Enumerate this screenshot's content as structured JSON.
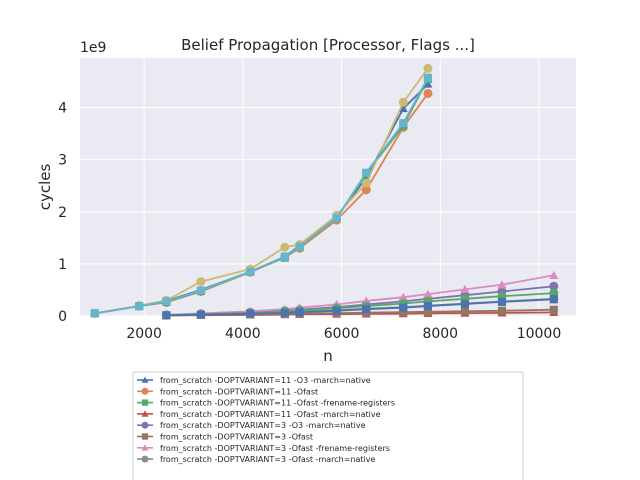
{
  "chart_data": {
    "type": "line",
    "title": "Belief Propagation [Processor, Flags ...]",
    "xlabel": "n",
    "ylabel": "cycles",
    "y_offset_label": "1e9",
    "xlim": [
      700,
      10750
    ],
    "ylim": [
      0,
      4.95
    ],
    "x_ticks": [
      2000,
      4000,
      6000,
      8000,
      10000
    ],
    "x_tick_labels": [
      "2000",
      "4000",
      "6000",
      "8000",
      "10000"
    ],
    "y_ticks": [
      0,
      1,
      2,
      3,
      4
    ],
    "y_tick_labels": [
      "0",
      "1",
      "2",
      "3",
      "4"
    ],
    "grid": true,
    "legend_position": "below",
    "series": [
      {
        "name": "from_scratch -DOPTVARIANT=11 -O3 -march=native",
        "color": "#4c72b0",
        "marker": "triangle",
        "x": [
          1000,
          1900,
          2450,
          3150,
          4150,
          4850,
          5150,
          5900,
          6500,
          7250,
          7750
        ],
        "y": [
          0.05,
          0.19,
          0.29,
          0.5,
          0.85,
          1.14,
          1.35,
          1.9,
          2.65,
          3.98,
          4.45
        ]
      },
      {
        "name": "from_scratch -DOPTVARIANT=11 -Ofast",
        "color": "#dd8452",
        "marker": "circle",
        "x": [
          1000,
          1900,
          2450,
          3150,
          4150,
          4850,
          5150,
          5900,
          6500,
          7250,
          7750
        ],
        "y": [
          0.05,
          0.19,
          0.26,
          0.47,
          0.84,
          1.13,
          1.3,
          1.84,
          2.42,
          3.62,
          4.27
        ]
      },
      {
        "name": "from_scratch -DOPTVARIANT=11 -Ofast -frename-registers",
        "color": "#55a868",
        "marker": "square",
        "x": [
          1000,
          1900,
          2450,
          3150,
          4150,
          4850,
          5150,
          5900,
          6500,
          7250,
          7750
        ],
        "y": [
          0.05,
          0.19,
          0.27,
          0.48,
          0.85,
          1.12,
          1.32,
          1.87,
          2.73,
          3.65,
          4.55
        ]
      },
      {
        "name": "from_scratch -DOPTVARIANT=11 -Ofast -march=native",
        "color": "#c44e52",
        "marker": "triangle",
        "x": [
          2450,
          3150,
          4150,
          4850,
          5150,
          5900,
          6500,
          7250,
          7750,
          8500,
          9250,
          10300
        ],
        "y": [
          0.01,
          0.015,
          0.02,
          0.025,
          0.03,
          0.035,
          0.04,
          0.045,
          0.05,
          0.055,
          0.06,
          0.07
        ]
      },
      {
        "name": "from_scratch -DOPTVARIANT=3 -O3 -march=native",
        "color": "#8172b3",
        "marker": "circle",
        "x": [
          2450,
          3150,
          4150,
          4850,
          5150,
          5900,
          6500,
          7250,
          7750,
          8500,
          9250,
          10300
        ],
        "y": [
          0.02,
          0.04,
          0.07,
          0.1,
          0.12,
          0.17,
          0.22,
          0.28,
          0.33,
          0.4,
          0.47,
          0.57
        ]
      },
      {
        "name": "from_scratch -DOPTVARIANT=3 -Ofast",
        "color": "#937860",
        "marker": "square",
        "x": [
          2450,
          3150,
          4150,
          4850,
          5150,
          5900,
          6500,
          7250,
          7750,
          8500,
          9250,
          10300
        ],
        "y": [
          0.01,
          0.02,
          0.03,
          0.04,
          0.045,
          0.055,
          0.065,
          0.075,
          0.08,
          0.09,
          0.1,
          0.12
        ]
      },
      {
        "name": "from_scratch -DOPTVARIANT=3 -Ofast -frename-registers",
        "color": "#da8bc3",
        "marker": "triangle",
        "x": [
          2450,
          3150,
          4150,
          4850,
          5150,
          5900,
          6500,
          7250,
          7750,
          8500,
          9250,
          10300
        ],
        "y": [
          0.02,
          0.05,
          0.09,
          0.13,
          0.16,
          0.22,
          0.29,
          0.36,
          0.42,
          0.51,
          0.6,
          0.78
        ]
      },
      {
        "name": "from_scratch -DOPTVARIANT=3 -Ofast -march=native",
        "color": "#8c8c8c",
        "marker": "circle",
        "x": [
          2450,
          3150,
          4150,
          4850,
          5150,
          5900,
          6500,
          7250,
          7750,
          8500,
          9250,
          10300
        ],
        "y": [
          0.015,
          0.03,
          0.05,
          0.07,
          0.08,
          0.11,
          0.14,
          0.17,
          0.2,
          0.24,
          0.28,
          0.33
        ]
      },
      {
        "name": "",
        "color": "#ccb974",
        "marker": "circle",
        "in_legend": false,
        "x": [
          1000,
          1900,
          2450,
          3150,
          4150,
          4850,
          5150,
          5900,
          6500,
          7250,
          7750
        ],
        "y": [
          0.05,
          0.2,
          0.3,
          0.66,
          0.9,
          1.32,
          1.37,
          1.93,
          2.55,
          4.1,
          4.75
        ]
      },
      {
        "name": "",
        "color": "#64b5cd",
        "marker": "square",
        "in_legend": false,
        "x": [
          1000,
          1900,
          2450,
          3150,
          4150,
          4850,
          5150,
          5900,
          6500,
          7250,
          7750
        ],
        "y": [
          0.05,
          0.19,
          0.28,
          0.49,
          0.85,
          1.14,
          1.33,
          1.88,
          2.75,
          3.7,
          4.57
        ]
      },
      {
        "name": "",
        "color": "#55a868",
        "marker": "circle",
        "in_legend": false,
        "x": [
          2450,
          3150,
          4150,
          4850,
          5150,
          5900,
          6500,
          7250,
          7750,
          8500,
          9250,
          10300
        ],
        "y": [
          0.02,
          0.035,
          0.06,
          0.09,
          0.11,
          0.15,
          0.19,
          0.24,
          0.28,
          0.33,
          0.38,
          0.44
        ]
      },
      {
        "name": "",
        "color": "#4c72b0",
        "marker": "square",
        "in_legend": false,
        "x": [
          2450,
          3150,
          4150,
          4850,
          5150,
          5900,
          6500,
          7250,
          7750,
          8500,
          9250,
          10300
        ],
        "y": [
          0.015,
          0.025,
          0.045,
          0.06,
          0.075,
          0.1,
          0.13,
          0.16,
          0.19,
          0.23,
          0.27,
          0.32
        ]
      }
    ]
  }
}
